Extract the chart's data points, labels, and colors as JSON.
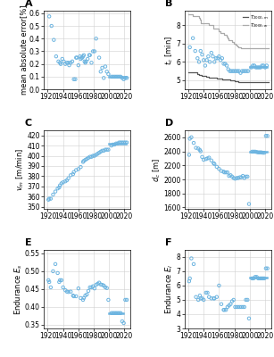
{
  "panel_A": {
    "label": "A",
    "ylabel": "mean absolute error[%]",
    "ylim": [
      0.0,
      0.62
    ],
    "yticks": [
      0.0,
      0.1,
      0.2,
      0.3,
      0.4,
      0.5,
      0.6
    ],
    "scatter_x": [
      1922,
      1925,
      1928,
      1931,
      1934,
      1936,
      1937,
      1939,
      1941,
      1943,
      1945,
      1947,
      1948,
      1950,
      1952,
      1954,
      1956,
      1957,
      1958,
      1960,
      1962,
      1963,
      1964,
      1965,
      1966,
      1967,
      1968,
      1969,
      1970,
      1972,
      1974,
      1975,
      1977,
      1979,
      1981,
      1983,
      1987,
      1989,
      1991,
      1993,
      1995,
      1997,
      1999,
      2003,
      2005,
      2007,
      2009,
      2011,
      2013,
      2015,
      2017,
      2019,
      2021,
      2023
    ],
    "scatter_y": [
      0.575,
      0.5,
      0.39,
      0.26,
      0.22,
      0.21,
      0.2,
      0.24,
      0.22,
      0.2,
      0.21,
      0.21,
      0.19,
      0.21,
      0.22,
      0.08,
      0.08,
      0.25,
      0.25,
      0.19,
      0.26,
      0.24,
      0.25,
      0.25,
      0.26,
      0.27,
      0.22,
      0.21,
      0.22,
      0.24,
      0.27,
      0.27,
      0.21,
      0.3,
      0.3,
      0.4,
      0.25,
      0.14,
      0.17,
      0.09,
      0.18,
      0.14,
      0.12,
      0.1,
      0.1,
      0.1,
      0.1,
      0.1,
      0.1,
      0.1,
      0.09,
      0.08,
      0.09,
      0.09
    ],
    "hline_x": [
      2000,
      2022
    ],
    "hline_y": 0.1
  },
  "panel_B": {
    "label": "B",
    "ylabel": "t_c [min]",
    "ylim": [
      4.5,
      8.8
    ],
    "yticks": [
      5,
      6,
      7,
      8
    ],
    "scatter_x": [
      1922,
      1926,
      1929,
      1932,
      1934,
      1936,
      1938,
      1940,
      1942,
      1944,
      1946,
      1948,
      1950,
      1952,
      1954,
      1956,
      1958,
      1960,
      1962,
      1964,
      1966,
      1968,
      1970,
      1972,
      1974,
      1976,
      1978,
      1980,
      1982,
      1984,
      1986,
      1988,
      1990,
      1992,
      1994,
      1996,
      1998,
      2002,
      2004,
      2006,
      2008,
      2010,
      2012,
      2014,
      2016,
      2018,
      2020,
      2022
    ],
    "scatter_y": [
      6.8,
      7.3,
      6.6,
      6.2,
      6.0,
      6.6,
      6.4,
      6.1,
      5.8,
      6.1,
      6.3,
      6.0,
      6.5,
      6.3,
      6.0,
      6.2,
      6.2,
      6.3,
      6.1,
      6.2,
      5.9,
      5.9,
      5.8,
      5.6,
      5.5,
      5.5,
      5.5,
      5.5,
      5.5,
      5.5,
      5.5,
      5.4,
      5.5,
      5.5,
      5.5,
      5.5,
      5.5,
      5.7,
      5.8,
      5.8,
      5.7,
      5.7,
      5.7,
      5.7,
      5.8,
      5.8,
      5.7,
      5.8
    ],
    "hline_x": [
      2000,
      2022
    ],
    "hline_y": 5.75,
    "line1_x": [
      1920,
      1922,
      1932,
      1934,
      1937,
      1941,
      1943,
      1944,
      1947,
      1952,
      1954,
      1957,
      1960,
      1964,
      1965,
      1967,
      1975,
      1979,
      1980,
      1981,
      1985,
      1993,
      1998,
      1999,
      2000,
      2025
    ],
    "line1_y": [
      5.45,
      5.45,
      5.35,
      5.3,
      5.25,
      5.22,
      5.2,
      5.18,
      5.15,
      5.13,
      5.12,
      5.1,
      5.08,
      5.06,
      5.04,
      5.02,
      4.99,
      4.97,
      4.95,
      4.93,
      4.92,
      4.91,
      4.9,
      4.9,
      4.88,
      4.88
    ],
    "line2_x": [
      1920,
      1926,
      1934,
      1935,
      1936,
      1947,
      1953,
      1960,
      1962,
      1967,
      1970,
      1971,
      1972,
      1977,
      1979,
      1982,
      1983,
      1984,
      1985,
      1988,
      2025
    ],
    "line2_y": [
      8.6,
      8.5,
      8.4,
      8.3,
      8.1,
      8.0,
      7.8,
      7.7,
      7.6,
      7.5,
      7.4,
      7.3,
      7.2,
      7.1,
      7.0,
      6.95,
      6.9,
      6.85,
      6.8,
      6.75,
      6.75
    ],
    "legend_labels": [
      "T_{2000,m}",
      "T_{2000,w}"
    ]
  },
  "panel_C": {
    "label": "C",
    "ylabel": "v_m [m/min]",
    "ylim": [
      348,
      425
    ],
    "yticks": [
      350,
      360,
      370,
      380,
      390,
      400,
      410,
      420
    ],
    "scatter_x": [
      1921,
      1922,
      1924,
      1927,
      1930,
      1933,
      1935,
      1936,
      1938,
      1940,
      1943,
      1945,
      1947,
      1950,
      1953,
      1954,
      1957,
      1960,
      1963,
      1966,
      1967,
      1969,
      1971,
      1973,
      1975,
      1977,
      1979,
      1981,
      1983,
      1985,
      1987,
      1989,
      1991,
      1993,
      1995,
      1997,
      1999,
      2003,
      2005,
      2007,
      2009,
      2011,
      2013,
      2015,
      2017,
      2019,
      2021,
      2023
    ],
    "scatter_y": [
      357,
      358,
      358,
      362,
      365,
      368,
      369,
      371,
      373,
      374,
      375,
      376,
      378,
      381,
      382,
      384,
      386,
      387,
      389,
      394,
      395,
      396,
      397,
      398,
      399,
      399,
      400,
      400,
      401,
      402,
      403,
      404,
      405,
      405,
      406,
      406,
      406,
      410,
      411,
      411,
      412,
      412,
      413,
      413,
      413,
      413,
      413,
      413
    ],
    "hline_x": [
      2000,
      2022
    ],
    "hline_y": 412
  },
  "panel_D": {
    "label": "D",
    "ylabel": "d_c [m]",
    "ylim": [
      1580,
      2700
    ],
    "yticks": [
      1600,
      1800,
      2000,
      2200,
      2400,
      2600
    ],
    "scatter_x": [
      1921,
      1922,
      1924,
      1927,
      1930,
      1933,
      1935,
      1936,
      1938,
      1940,
      1943,
      1945,
      1947,
      1950,
      1953,
      1954,
      1957,
      1960,
      1963,
      1966,
      1967,
      1969,
      1971,
      1973,
      1975,
      1977,
      1979,
      1981,
      1983,
      1985,
      1987,
      1989,
      1991,
      1993,
      1995,
      1997,
      1999,
      2003,
      2005,
      2007,
      2009,
      2011,
      2013,
      2015,
      2017,
      2019,
      2021,
      2023
    ],
    "scatter_y": [
      2350,
      2580,
      2600,
      2520,
      2450,
      2440,
      2420,
      2400,
      2320,
      2280,
      2290,
      2300,
      2310,
      2270,
      2230,
      2220,
      2180,
      2150,
      2120,
      2110,
      2100,
      2100,
      2100,
      2050,
      2060,
      2040,
      2020,
      2010,
      2020,
      2020,
      2030,
      2030,
      2050,
      2020,
      2040,
      2040,
      1650,
      2395,
      2395,
      2395,
      2390,
      2385,
      2385,
      2385,
      2380,
      2380,
      2620,
      2620
    ],
    "hline_x": [
      2000,
      2022
    ],
    "hline_y": 2390
  },
  "panel_E": {
    "label": "E",
    "ylabel": "Endurance E_s",
    "ylim": [
      0.34,
      0.56
    ],
    "yticks": [
      0.35,
      0.4,
      0.45,
      0.5,
      0.55
    ],
    "scatter_x": [
      1921,
      1922,
      1924,
      1927,
      1930,
      1933,
      1935,
      1936,
      1938,
      1940,
      1943,
      1945,
      1947,
      1950,
      1953,
      1954,
      1957,
      1960,
      1963,
      1966,
      1967,
      1969,
      1971,
      1973,
      1975,
      1977,
      1979,
      1981,
      1983,
      1985,
      1987,
      1989,
      1991,
      1993,
      1995,
      1997,
      1999,
      2003,
      2005,
      2007,
      2009,
      2011,
      2013,
      2015,
      2017,
      2019,
      2021,
      2023
    ],
    "scatter_y": [
      0.475,
      0.47,
      0.455,
      0.5,
      0.52,
      0.495,
      0.47,
      0.475,
      0.475,
      0.455,
      0.447,
      0.443,
      0.442,
      0.443,
      0.432,
      0.43,
      0.43,
      0.452,
      0.425,
      0.42,
      0.425,
      0.432,
      0.435,
      0.445,
      0.455,
      0.455,
      0.458,
      0.452,
      0.462,
      0.465,
      0.468,
      0.463,
      0.462,
      0.46,
      0.455,
      0.453,
      0.42,
      0.383,
      0.383,
      0.383,
      0.383,
      0.383,
      0.383,
      0.383,
      0.36,
      0.355,
      0.42,
      0.42
    ],
    "hline_x": [
      2000,
      2018
    ],
    "hline_y": 0.383
  },
  "panel_F": {
    "label": "F",
    "ylabel": "Endurance E_l",
    "ylim": [
      3.0,
      8.5
    ],
    "yticks": [
      3,
      4,
      5,
      6,
      7,
      8
    ],
    "scatter_x": [
      1921,
      1922,
      1924,
      1927,
      1930,
      1933,
      1935,
      1936,
      1938,
      1940,
      1943,
      1945,
      1947,
      1950,
      1953,
      1954,
      1957,
      1960,
      1963,
      1966,
      1967,
      1969,
      1971,
      1973,
      1975,
      1977,
      1979,
      1981,
      1983,
      1985,
      1987,
      1989,
      1991,
      1993,
      1995,
      1997,
      1999,
      2003,
      2005,
      2007,
      2009,
      2011,
      2013,
      2015,
      2017,
      2019,
      2021,
      2023
    ],
    "scatter_y": [
      6.3,
      6.5,
      7.9,
      7.5,
      5.2,
      5.0,
      5.3,
      5.1,
      5.1,
      5.0,
      5.5,
      5.5,
      5.2,
      5.1,
      5.1,
      5.1,
      5.2,
      6.0,
      4.7,
      4.3,
      4.3,
      4.3,
      4.5,
      4.6,
      4.7,
      4.9,
      5.0,
      4.5,
      4.5,
      4.5,
      4.5,
      4.5,
      4.5,
      4.5,
      5.0,
      5.0,
      3.7,
      6.5,
      6.5,
      6.6,
      6.6,
      6.5,
      6.5,
      6.5,
      6.5,
      6.5,
      7.2,
      7.2
    ],
    "hline_x": [
      2000,
      2022
    ],
    "hline_y": 6.55
  },
  "scatter_color": "#6cb4e0",
  "scatter_size": 6,
  "scatter_marker": "o",
  "scatter_facecolor": "none",
  "scatter_lw": 0.7,
  "hline_color": "#6cb4e0",
  "hline_lw": 1.8,
  "line_men_color": "#555555",
  "line_women_color": "#aaaaaa",
  "grid_color": "#d0d0d0",
  "background_color": "#ffffff",
  "ylabel_fontsize": 6.0,
  "tick_fontsize": 5.5,
  "label_fontsize": 8,
  "xlim": [
    1915,
    2028
  ],
  "xticks": [
    1920,
    1940,
    1960,
    1980,
    2000,
    2020
  ]
}
